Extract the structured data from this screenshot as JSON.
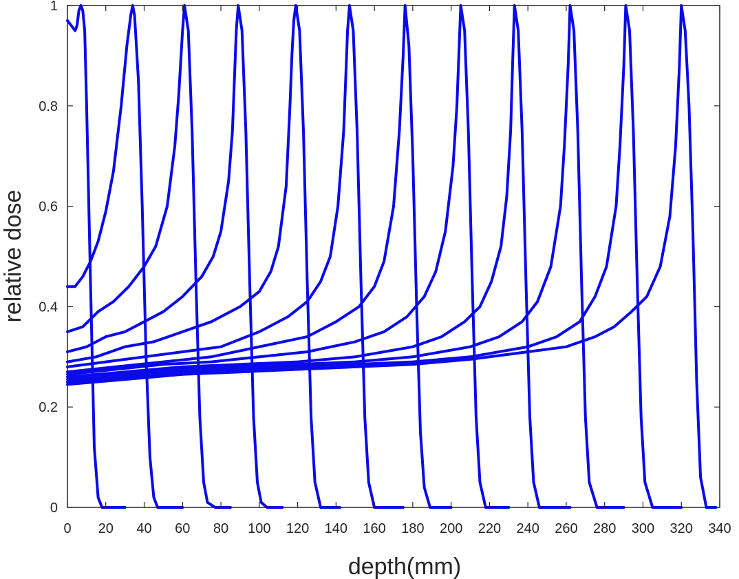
{
  "chart_data": {
    "type": "line",
    "title": "",
    "xlabel": "depth(mm)",
    "ylabel": "relative dose",
    "xlim": [
      0,
      340
    ],
    "ylim": [
      0,
      1
    ],
    "xticks": [
      0,
      20,
      40,
      60,
      80,
      100,
      120,
      140,
      160,
      180,
      200,
      220,
      240,
      260,
      280,
      300,
      320,
      340
    ],
    "xtick_labels": [
      "0",
      "20",
      "40",
      "60",
      "80",
      "100",
      "120",
      "140",
      "160",
      "180",
      "200",
      "220",
      "240",
      "260",
      "280",
      "300",
      "320",
      "340"
    ],
    "yticks": [
      0,
      0.2,
      0.4,
      0.6,
      0.8,
      1
    ],
    "ytick_labels": [
      "0",
      "0.2",
      "0.4",
      "0.6",
      "0.8",
      "1"
    ],
    "grid": false,
    "legend": "none",
    "line_color": "#0a0aeb",
    "series": [
      {
        "x": [
          0,
          2,
          4,
          5,
          6,
          7,
          8,
          9,
          10,
          12,
          14,
          16,
          18,
          22,
          30
        ],
        "y": [
          0.97,
          0.96,
          0.95,
          0.96,
          0.99,
          1.0,
          0.99,
          0.95,
          0.8,
          0.45,
          0.12,
          0.02,
          0,
          0,
          0
        ]
      },
      {
        "x": [
          0,
          4,
          8,
          12,
          16,
          20,
          24,
          28,
          31,
          33,
          34,
          35,
          37,
          39,
          41,
          43,
          45,
          47,
          50,
          60
        ],
        "y": [
          0.44,
          0.44,
          0.46,
          0.49,
          0.53,
          0.59,
          0.67,
          0.8,
          0.92,
          0.98,
          1.0,
          0.98,
          0.85,
          0.6,
          0.3,
          0.1,
          0.02,
          0,
          0,
          0
        ]
      },
      {
        "x": [
          0,
          8,
          16,
          24,
          32,
          40,
          46,
          52,
          56,
          58,
          60,
          61,
          63,
          65,
          67,
          69,
          71,
          73,
          77,
          85
        ],
        "y": [
          0.35,
          0.36,
          0.39,
          0.41,
          0.44,
          0.48,
          0.52,
          0.6,
          0.72,
          0.82,
          0.95,
          1.0,
          0.95,
          0.75,
          0.45,
          0.18,
          0.05,
          0.01,
          0,
          0
        ]
      },
      {
        "x": [
          0,
          10,
          20,
          30,
          40,
          50,
          60,
          70,
          76,
          80,
          84,
          86,
          87,
          88,
          89,
          91,
          93,
          95,
          97,
          99,
          101,
          104,
          112
        ],
        "y": [
          0.31,
          0.32,
          0.34,
          0.35,
          0.37,
          0.39,
          0.42,
          0.46,
          0.5,
          0.55,
          0.65,
          0.75,
          0.85,
          0.95,
          1.0,
          0.95,
          0.75,
          0.45,
          0.18,
          0.05,
          0.01,
          0,
          0
        ]
      },
      {
        "x": [
          0,
          15,
          30,
          45,
          60,
          75,
          90,
          100,
          106,
          110,
          114,
          116,
          117,
          118,
          119,
          121,
          123,
          125,
          127,
          129,
          132,
          142
        ],
        "y": [
          0.29,
          0.3,
          0.32,
          0.33,
          0.35,
          0.37,
          0.4,
          0.43,
          0.47,
          0.52,
          0.64,
          0.8,
          0.9,
          0.97,
          1.0,
          0.95,
          0.75,
          0.45,
          0.18,
          0.05,
          0,
          0
        ]
      },
      {
        "x": [
          0,
          20,
          40,
          60,
          80,
          100,
          115,
          125,
          132,
          137,
          141,
          144,
          145,
          146,
          147,
          149,
          151,
          153,
          155,
          157,
          160,
          175
        ],
        "y": [
          0.28,
          0.29,
          0.3,
          0.31,
          0.32,
          0.35,
          0.38,
          0.41,
          0.45,
          0.5,
          0.6,
          0.75,
          0.85,
          0.95,
          1.0,
          0.95,
          0.75,
          0.45,
          0.18,
          0.05,
          0,
          0
        ]
      },
      {
        "x": [
          0,
          25,
          50,
          75,
          100,
          125,
          140,
          152,
          160,
          165,
          170,
          173,
          175,
          176,
          178,
          180,
          182,
          184,
          186,
          189,
          200
        ],
        "y": [
          0.27,
          0.28,
          0.29,
          0.3,
          0.32,
          0.34,
          0.37,
          0.4,
          0.44,
          0.49,
          0.6,
          0.75,
          0.9,
          1.0,
          0.92,
          0.7,
          0.4,
          0.15,
          0.04,
          0,
          0
        ]
      },
      {
        "x": [
          0,
          25,
          50,
          75,
          100,
          125,
          150,
          165,
          177,
          186,
          192,
          197,
          201,
          203,
          204,
          205,
          207,
          209,
          211,
          213,
          215,
          218,
          230
        ],
        "y": [
          0.265,
          0.275,
          0.285,
          0.29,
          0.3,
          0.31,
          0.33,
          0.35,
          0.38,
          0.42,
          0.47,
          0.55,
          0.68,
          0.8,
          0.9,
          1.0,
          0.95,
          0.75,
          0.45,
          0.18,
          0.05,
          0,
          0
        ]
      },
      {
        "x": [
          0,
          30,
          60,
          90,
          120,
          150,
          180,
          195,
          207,
          215,
          221,
          226,
          229,
          231,
          232,
          233,
          235,
          237,
          239,
          241,
          243,
          246,
          262
        ],
        "y": [
          0.26,
          0.27,
          0.28,
          0.285,
          0.29,
          0.3,
          0.32,
          0.34,
          0.37,
          0.4,
          0.45,
          0.52,
          0.62,
          0.75,
          0.88,
          1.0,
          0.95,
          0.75,
          0.45,
          0.18,
          0.05,
          0,
          0
        ]
      },
      {
        "x": [
          0,
          30,
          60,
          90,
          120,
          150,
          180,
          210,
          225,
          237,
          245,
          252,
          257,
          259,
          261,
          262,
          264,
          266,
          268,
          270,
          272,
          276,
          290
        ],
        "y": [
          0.255,
          0.265,
          0.275,
          0.28,
          0.285,
          0.29,
          0.3,
          0.32,
          0.34,
          0.37,
          0.41,
          0.48,
          0.6,
          0.72,
          0.88,
          1.0,
          0.95,
          0.75,
          0.45,
          0.18,
          0.05,
          0,
          0
        ]
      },
      {
        "x": [
          0,
          30,
          60,
          90,
          120,
          150,
          180,
          210,
          240,
          255,
          267,
          275,
          281,
          286,
          288,
          290,
          291,
          293,
          295,
          297,
          299,
          301,
          305,
          320
        ],
        "y": [
          0.25,
          0.26,
          0.27,
          0.275,
          0.28,
          0.285,
          0.29,
          0.3,
          0.32,
          0.34,
          0.37,
          0.42,
          0.48,
          0.6,
          0.72,
          0.88,
          1.0,
          0.95,
          0.75,
          0.45,
          0.18,
          0.05,
          0,
          0
        ]
      },
      {
        "x": [
          0,
          30,
          60,
          90,
          120,
          150,
          180,
          210,
          240,
          260,
          275,
          285,
          294,
          302,
          309,
          314,
          317,
          319,
          320,
          322,
          324,
          326,
          328,
          330,
          333,
          338
        ],
        "y": [
          0.245,
          0.255,
          0.265,
          0.27,
          0.275,
          0.28,
          0.285,
          0.295,
          0.31,
          0.32,
          0.34,
          0.36,
          0.39,
          0.42,
          0.48,
          0.58,
          0.72,
          0.88,
          1.0,
          0.95,
          0.8,
          0.55,
          0.25,
          0.06,
          0,
          0
        ]
      }
    ]
  }
}
